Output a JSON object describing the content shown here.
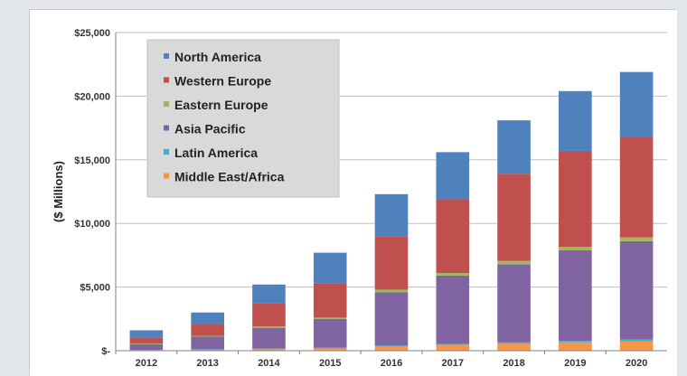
{
  "chart_data": {
    "type": "bar",
    "stacked": true,
    "title": "",
    "xlabel": "",
    "ylabel": "($ Millions)",
    "ylim": [
      0,
      25000
    ],
    "yticks": [
      0,
      5000,
      10000,
      15000,
      20000,
      25000
    ],
    "ytick_labels": [
      "$-",
      "$5,000",
      "$10,000",
      "$15,000",
      "$20,000",
      "$25,000"
    ],
    "categories": [
      "2012",
      "2013",
      "2014",
      "2015",
      "2016",
      "2017",
      "2018",
      "2019",
      "2020"
    ],
    "grid": "horizontal",
    "legend_position": "top-left",
    "series": [
      {
        "name": "Middle East/Africa",
        "color": "#f79646",
        "values": [
          50,
          80,
          120,
          180,
          330,
          450,
          550,
          650,
          750
        ]
      },
      {
        "name": "Latin America",
        "color": "#4bacc6",
        "values": [
          20,
          30,
          40,
          50,
          70,
          90,
          100,
          120,
          130
        ]
      },
      {
        "name": "Asia Pacific",
        "color": "#8064a2",
        "values": [
          430,
          990,
          1640,
          2270,
          4200,
          5360,
          6150,
          7130,
          7720
        ]
      },
      {
        "name": "Eastern Europe",
        "color": "#9bbb59",
        "values": [
          50,
          50,
          100,
          100,
          200,
          200,
          250,
          250,
          300
        ]
      },
      {
        "name": "Western Europe",
        "color": "#c0504d",
        "values": [
          500,
          950,
          1800,
          2700,
          4200,
          5800,
          6850,
          7550,
          7900
        ]
      },
      {
        "name": "North America",
        "color": "#4f81bd",
        "values": [
          550,
          900,
          1500,
          2400,
          3300,
          3700,
          4200,
          4700,
          5100
        ]
      }
    ],
    "legend_order": [
      "North America",
      "Western Europe",
      "Eastern Europe",
      "Asia Pacific",
      "Latin America",
      "Middle East/Africa"
    ]
  }
}
